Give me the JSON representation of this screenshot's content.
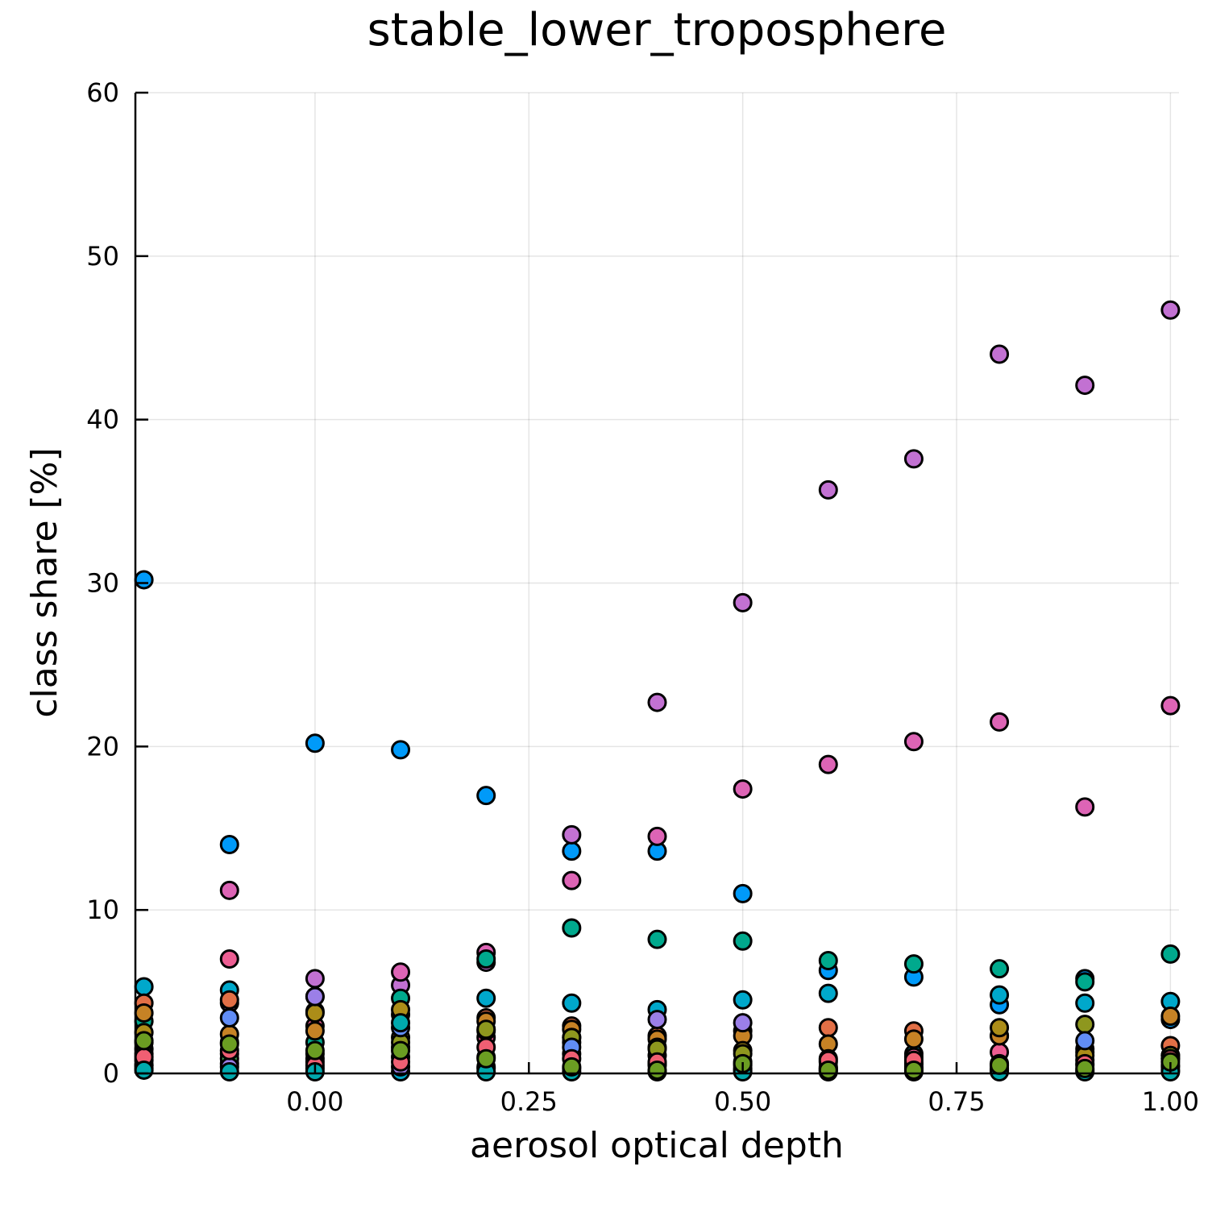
{
  "chart_data": {
    "type": "scatter",
    "title": "stable_lower_troposphere",
    "xlabel": "aerosol optical depth",
    "ylabel": "class share [%]",
    "xlim": [
      -0.21,
      1.01
    ],
    "ylim": [
      0,
      60
    ],
    "xticks": [
      0.0,
      0.25,
      0.5,
      0.75,
      1.0
    ],
    "xtick_labels": [
      "0.00",
      "0.25",
      "0.50",
      "0.75",
      "1.00"
    ],
    "yticks": [
      0,
      10,
      20,
      30,
      40,
      50,
      60
    ],
    "ytick_labels": [
      "0",
      "10",
      "20",
      "30",
      "40",
      "50",
      "60"
    ],
    "grid": true,
    "legend": "none",
    "colors": [
      "#009af9",
      "#e26f46",
      "#3ea44e",
      "#c271d2",
      "#ac8d18",
      "#00a9ad",
      "#ed5e93",
      "#c68225",
      "#00a98d",
      "#8e971e",
      "#00a8cb",
      "#9b7fe8",
      "#618df6",
      "#f05f73",
      "#dd64b5",
      "#6b9d22"
    ],
    "series": [
      {
        "color": "#009af9",
        "x": [
          -0.2,
          -0.1,
          0.0,
          0.1,
          0.2,
          0.3,
          0.4,
          0.5,
          0.6,
          0.7,
          0.8,
          0.9,
          1.0
        ],
        "y": [
          30.2,
          14.0,
          20.2,
          19.8,
          17.0,
          13.6,
          13.6,
          11.0,
          6.3,
          5.9,
          4.2,
          5.8,
          3.3
        ]
      },
      {
        "color": "#c271d2",
        "x": [
          -0.2,
          -0.1,
          0.0,
          0.1,
          0.2,
          0.3,
          0.4,
          0.5,
          0.6,
          0.7,
          0.8,
          0.9,
          1.0
        ],
        "y": [
          0.5,
          4.3,
          5.8,
          5.4,
          6.8,
          14.6,
          22.7,
          28.8,
          35.7,
          37.6,
          44.0,
          42.1,
          46.7
        ]
      },
      {
        "color": "#dd64b5",
        "x": [
          -0.2,
          -0.1,
          0.0,
          0.1,
          0.2,
          0.3,
          0.4,
          0.5,
          0.6,
          0.7,
          0.8,
          0.9,
          1.0
        ],
        "y": [
          0.8,
          11.2,
          4.7,
          6.2,
          7.4,
          11.8,
          14.5,
          17.4,
          18.9,
          20.3,
          21.5,
          16.3,
          22.5
        ]
      },
      {
        "color": "#00a98d",
        "x": [
          -0.2,
          -0.1,
          0.0,
          0.1,
          0.2,
          0.3,
          0.4,
          0.5,
          0.6,
          0.7,
          0.8,
          0.9,
          1.0
        ],
        "y": [
          3.2,
          1.9,
          1.9,
          4.6,
          7.0,
          8.9,
          8.2,
          8.1,
          6.9,
          6.7,
          6.4,
          5.6,
          7.3
        ]
      },
      {
        "color": "#00a8cb",
        "x": [
          -0.2,
          -0.1,
          0.0,
          0.1,
          0.2,
          0.3,
          0.4,
          0.5,
          0.6,
          0.7,
          0.8,
          0.9,
          1.0
        ],
        "y": [
          5.3,
          5.1,
          0.3,
          0.1,
          4.6,
          4.3,
          3.9,
          4.5,
          4.9,
          1.2,
          4.8,
          4.3,
          4.4
        ]
      },
      {
        "color": "#ed5e93",
        "x": [
          -0.2,
          -0.1,
          0.0,
          0.1,
          0.2,
          0.3,
          0.4,
          0.5,
          0.6,
          0.7,
          0.8,
          0.9,
          1.0
        ],
        "y": [
          1.5,
          7.0,
          2.9,
          1.6,
          2.2,
          1.9,
          1.1,
          0.7,
          0.7,
          1.0,
          1.3,
          0.8,
          0.5
        ]
      },
      {
        "color": "#e26f46",
        "x": [
          -0.2,
          -0.1,
          0.0,
          0.1,
          0.2,
          0.3,
          0.4,
          0.5,
          0.6,
          0.7,
          0.8,
          0.9,
          1.0
        ],
        "y": [
          4.3,
          4.5,
          3.8,
          3.6,
          3.4,
          2.9,
          2.3,
          2.6,
          2.8,
          2.6,
          2.3,
          1.5,
          1.7
        ]
      },
      {
        "color": "#c68225",
        "x": [
          -0.2,
          -0.1,
          0.0,
          0.1,
          0.2,
          0.3,
          0.4,
          0.5,
          0.6,
          0.7,
          0.8,
          0.9,
          1.0
        ],
        "y": [
          3.7,
          2.4,
          2.6,
          2.2,
          3.2,
          2.7,
          2.1,
          2.3,
          1.8,
          2.1,
          2.3,
          1.3,
          3.5
        ]
      },
      {
        "color": "#ac8d18",
        "x": [
          -0.2,
          -0.1,
          0.0,
          0.1,
          0.2,
          0.3,
          0.4,
          0.5,
          0.6,
          0.7,
          0.8,
          0.9,
          1.0
        ],
        "y": [
          2.5,
          1.2,
          3.7,
          3.9,
          2.6,
          2.2,
          1.6,
          1.4,
          0.9,
          0.6,
          2.8,
          1.1,
          1.1
        ]
      },
      {
        "color": "#8e971e",
        "x": [
          -0.2,
          -0.1,
          0.0,
          0.1,
          0.2,
          0.3,
          0.4,
          0.5,
          0.6,
          0.7,
          0.8,
          0.9,
          1.0
        ],
        "y": [
          1.9,
          0.6,
          0.9,
          1.9,
          2.7,
          2.2,
          1.5,
          1.2,
          0.4,
          0.4,
          0.5,
          3.0,
          1.1
        ]
      },
      {
        "color": "#3ea44e",
        "x": [
          -0.2,
          -0.1,
          0.0,
          0.1,
          0.2,
          0.3,
          0.4,
          0.5,
          0.6,
          0.7,
          0.8,
          0.9,
          1.0
        ],
        "y": [
          1.2,
          0.9,
          0.7,
          1.0,
          1.0,
          0.3,
          0.5,
          0.3,
          0.2,
          0.3,
          0.2,
          0.2,
          0.4
        ]
      },
      {
        "color": "#9b7fe8",
        "x": [
          -0.2,
          -0.1,
          0.0,
          0.1,
          0.2,
          0.3,
          0.4,
          0.5,
          0.6,
          0.7,
          0.8,
          0.9,
          1.0
        ],
        "y": [
          0.3,
          0.4,
          4.7,
          0.4,
          0.3,
          1.2,
          3.3,
          3.1,
          0.3,
          0.3,
          0.2,
          0.5,
          0.2
        ]
      },
      {
        "color": "#618df6",
        "x": [
          -0.2,
          -0.1,
          0.0,
          0.1,
          0.2,
          0.3,
          0.4,
          0.5,
          0.6,
          0.7,
          0.8,
          0.9,
          1.0
        ],
        "y": [
          0.5,
          3.4,
          1.2,
          2.8,
          0.4,
          1.6,
          0.6,
          0.2,
          0.3,
          0.6,
          0.3,
          2.0,
          0.9
        ]
      },
      {
        "color": "#f05f73",
        "x": [
          -0.2,
          -0.1,
          0.0,
          0.1,
          0.2,
          0.3,
          0.4,
          0.5,
          0.6,
          0.7,
          0.8,
          0.9,
          1.0
        ],
        "y": [
          1.0,
          1.4,
          0.5,
          0.7,
          1.6,
          0.9,
          0.7,
          0.5,
          0.8,
          0.8,
          0.6,
          0.6,
          0.9
        ]
      },
      {
        "color": "#00a9ad",
        "x": [
          -0.2,
          -0.1,
          0.0,
          0.1,
          0.2,
          0.3,
          0.4,
          0.5,
          0.6,
          0.7,
          0.8,
          0.9,
          1.0
        ],
        "y": [
          0.2,
          0.1,
          0.1,
          3.1,
          0.1,
          0.1,
          0.1,
          0.1,
          0.1,
          0.1,
          0.1,
          0.1,
          0.1
        ]
      },
      {
        "color": "#6b9d22",
        "x": [
          -0.2,
          -0.1,
          0.0,
          0.1,
          0.2,
          0.3,
          0.4,
          0.5,
          0.6,
          0.7,
          0.8,
          0.9,
          1.0
        ],
        "y": [
          2.0,
          1.8,
          1.4,
          1.4,
          0.9,
          0.4,
          0.2,
          0.6,
          0.2,
          0.2,
          0.5,
          0.3,
          0.7
        ]
      }
    ]
  }
}
